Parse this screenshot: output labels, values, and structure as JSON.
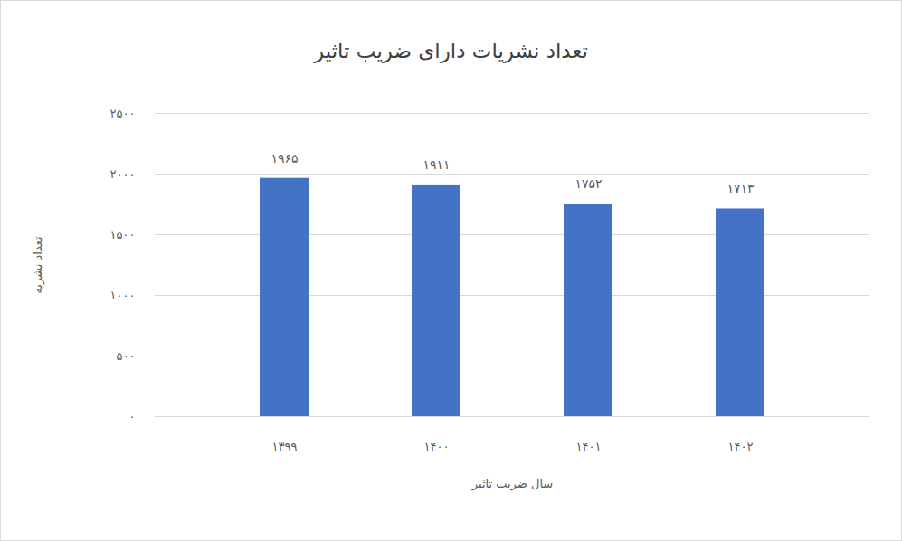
{
  "chart_data": {
    "type": "bar",
    "title": "تعداد نشریات دارای ضریب تاثیر",
    "x_label": "سال ضریب تاثیر",
    "y_label": "تعداد نشریه",
    "categories": [
      "۱۳۹۹",
      "۱۴۰۰",
      "۱۴۰۱",
      "۱۴۰۲"
    ],
    "values": [
      1965,
      1911,
      1752,
      1713
    ],
    "value_labels": [
      "۱۹۶۵",
      "۱۹۱۱",
      "۱۷۵۲",
      "۱۷۱۳"
    ],
    "color": "#4472c4",
    "ylim": [
      0,
      2500
    ],
    "yticks": [
      {
        "value": 0,
        "label": "۰"
      },
      {
        "value": 500,
        "label": "۵۰۰"
      },
      {
        "value": 1000,
        "label": "۱۰۰۰"
      },
      {
        "value": 1500,
        "label": "۱۵۰۰"
      },
      {
        "value": 2000,
        "label": "۲۰۰۰"
      },
      {
        "value": 2500,
        "label": "۲۵۰۰"
      }
    ],
    "grid": true,
    "data_labels": true
  }
}
